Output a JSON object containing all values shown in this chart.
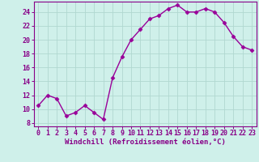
{
  "x": [
    0,
    1,
    2,
    3,
    4,
    5,
    6,
    7,
    8,
    9,
    10,
    11,
    12,
    13,
    14,
    15,
    16,
    17,
    18,
    19,
    20,
    21,
    22,
    23
  ],
  "y": [
    10.5,
    12.0,
    11.5,
    9.0,
    9.5,
    10.5,
    9.5,
    8.5,
    14.5,
    17.5,
    20.0,
    21.5,
    23.0,
    23.5,
    24.5,
    25.0,
    24.0,
    24.0,
    24.5,
    24.0,
    22.5,
    20.5,
    19.0,
    18.5
  ],
  "line_color": "#990099",
  "marker": "D",
  "marker_size": 2.5,
  "bg_color": "#cff0ea",
  "grid_color": "#b0d8d0",
  "xlabel": "Windchill (Refroidissement éolien,°C)",
  "xlabel_color": "#880088",
  "ylabel_ticks": [
    8,
    10,
    12,
    14,
    16,
    18,
    20,
    22,
    24
  ],
  "ylim": [
    7.5,
    25.5
  ],
  "xlim": [
    -0.5,
    23.5
  ],
  "tick_color": "#880088",
  "tick_label_color": "#880088",
  "axis_label_fontsize": 6.5,
  "tick_fontsize": 6.0,
  "linewidth": 1.0
}
